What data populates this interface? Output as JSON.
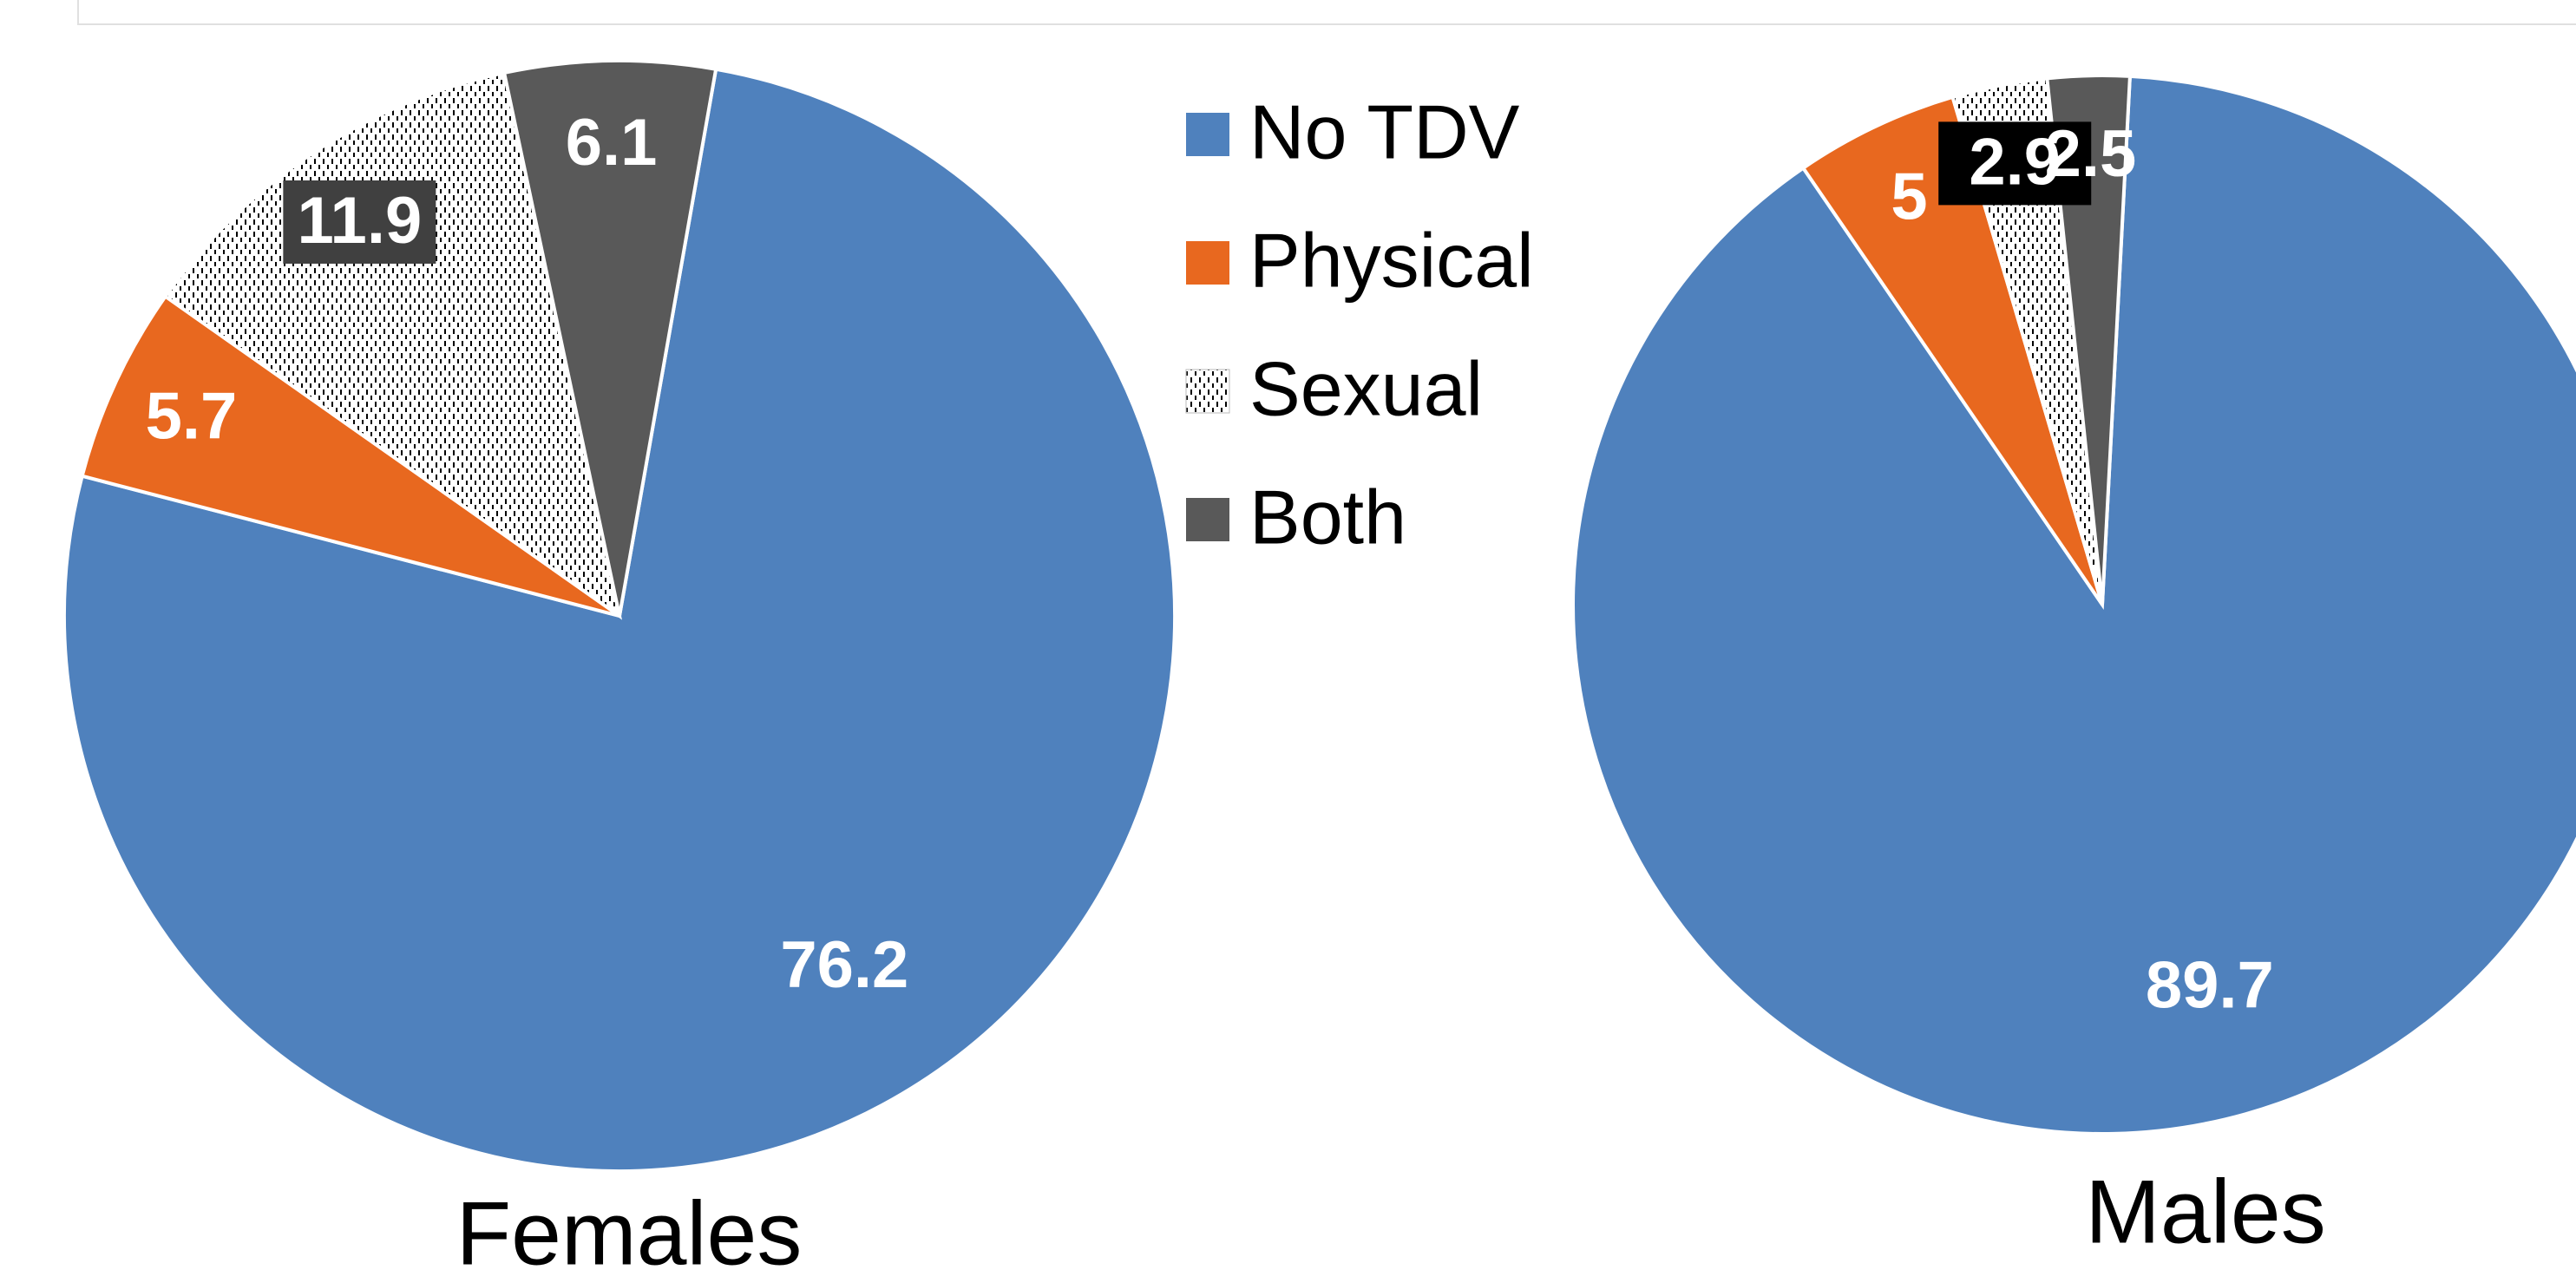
{
  "legend": {
    "items": [
      {
        "name": "No TDV",
        "color": "#4f81bd"
      },
      {
        "name": "Physical",
        "color": "#e8681f"
      },
      {
        "name": "Sexual",
        "color": "#ffffff",
        "hatch": true
      },
      {
        "name": "Both",
        "color": "#595959"
      }
    ]
  },
  "chart_data": [
    {
      "type": "pie",
      "title": "Females",
      "values": [
        76.2,
        5.7,
        11.9,
        6.1
      ]
    },
    {
      "type": "pie",
      "title": "Males",
      "values": [
        89.7,
        5.0,
        2.9,
        2.5
      ]
    }
  ]
}
